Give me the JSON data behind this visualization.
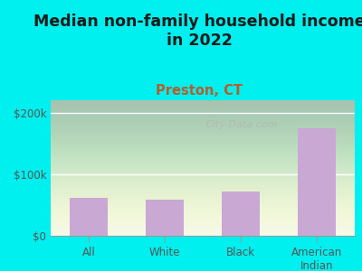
{
  "title": "Median non-family household income\nin 2022",
  "subtitle": "Preston, CT",
  "categories": [
    "All",
    "White",
    "Black",
    "American\nIndian"
  ],
  "values": [
    62000,
    58000,
    72000,
    175000
  ],
  "bar_color": "#c9a8d4",
  "bg_outer": "#00EFEF",
  "title_fontsize": 12.5,
  "title_color": "#1a1a1a",
  "subtitle_fontsize": 10.5,
  "subtitle_color": "#b85c2a",
  "tick_label_color": "#555555",
  "ylabel_ticks": [
    0,
    100000,
    200000
  ],
  "ylabel_labels": [
    "$0",
    "$100k",
    "$200k"
  ],
  "ylim": [
    0,
    220000
  ],
  "watermark": "City-Data.com",
  "watermark_color": "#b0b8b0"
}
